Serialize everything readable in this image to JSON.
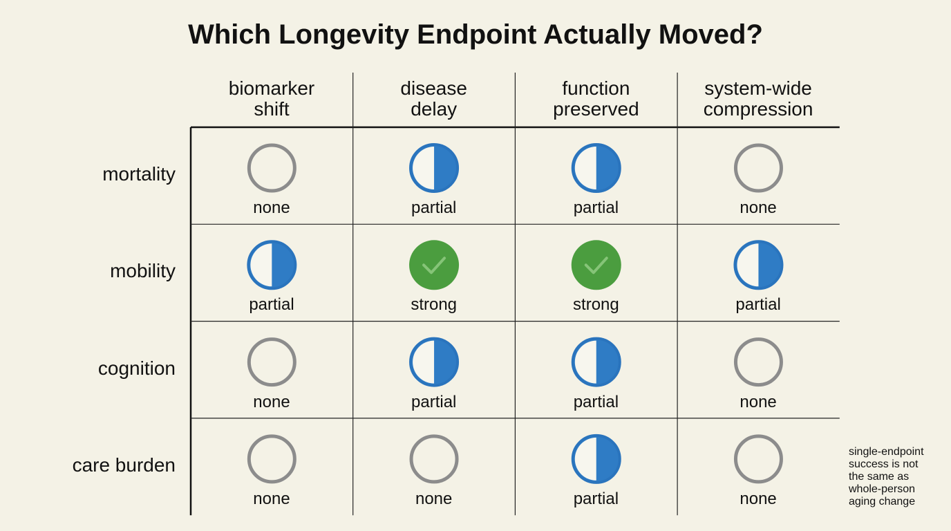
{
  "title": "Which Longevity Endpoint Actually Moved?",
  "table": {
    "columns": [
      "biomarker\nshift",
      "disease\ndelay",
      "function\npreserved",
      "system-wide\ncompression"
    ],
    "rows": [
      {
        "label": "mortality",
        "cells": [
          "none",
          "partial",
          "partial",
          "none"
        ]
      },
      {
        "label": "mobility",
        "cells": [
          "partial",
          "strong",
          "strong",
          "partial"
        ]
      },
      {
        "label": "cognition",
        "cells": [
          "none",
          "partial",
          "partial",
          "none"
        ]
      },
      {
        "label": "care burden",
        "cells": [
          "none",
          "none",
          "partial",
          "none"
        ]
      }
    ]
  },
  "note": "single-endpoint\nsuccess is not\nthe same as\nwhole-person\naging change"
}
